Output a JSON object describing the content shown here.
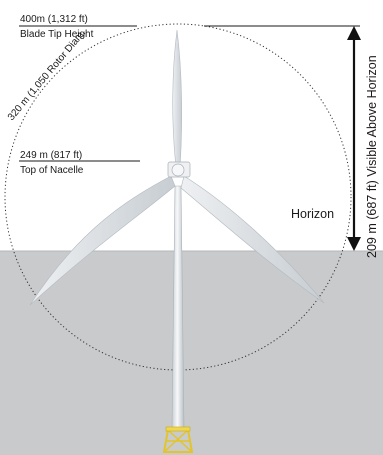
{
  "annotations": {
    "blade_tip": {
      "value": "400m (1,312 ft)",
      "label": "Blade Tip Height"
    },
    "nacelle": {
      "value": "249 m (817 ft)",
      "label": "Top of Nacelle"
    },
    "rotor_diameter": "320 m (1,050 Rotor Diam.",
    "horizon": "Horizon",
    "visible_above_horizon": "209 m (687 ft) Visible Above Horizon"
  },
  "colors": {
    "sea": "#c8cacc",
    "text": "#1a1a1a",
    "turbine": "#f4f5f6",
    "turbine_shade": "#c9cfd4",
    "foundation": "#e8cf3a",
    "dotted_circle": "#333333"
  }
}
